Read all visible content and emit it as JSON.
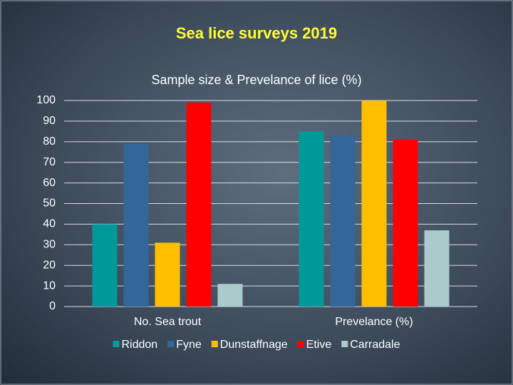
{
  "chart_data": {
    "type": "bar",
    "title": "Sea lice surveys 2019",
    "subtitle": "Sample size & Prevelance of lice (%)",
    "categories": [
      "No. Sea trout",
      "Prevelance (%)"
    ],
    "series": [
      {
        "name": "Riddon",
        "color": "#009999",
        "values": [
          40,
          85
        ]
      },
      {
        "name": "Fyne",
        "color": "#336699",
        "values": [
          79,
          83
        ]
      },
      {
        "name": "Dunstaffnage",
        "color": "#ffbf00",
        "values": [
          31,
          100
        ]
      },
      {
        "name": "Etive",
        "color": "#ff0000",
        "values": [
          99,
          81
        ]
      },
      {
        "name": "Carradale",
        "color": "#a9cbcb",
        "values": [
          11,
          37
        ]
      }
    ],
    "ylim": [
      0,
      100
    ],
    "yticks": [
      0,
      10,
      20,
      30,
      40,
      50,
      60,
      70,
      80,
      90,
      100
    ],
    "grid": true,
    "legend": "bottom"
  }
}
